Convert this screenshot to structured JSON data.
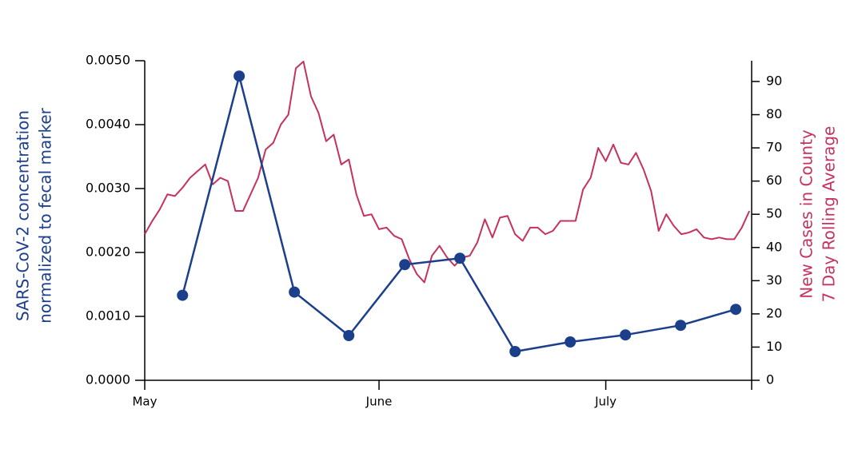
{
  "chart_data": {
    "type": "line",
    "y_label": [
      "SARS-CoV-2 concentration",
      "normalized to fecal marker"
    ],
    "y2_label": [
      "New Cases in County",
      "7 Day Rolling Average"
    ],
    "xlim": [
      0,
      80.3
    ],
    "xticks": [
      {
        "value": 0,
        "label": "May"
      },
      {
        "value": 31,
        "label": "June"
      },
      {
        "value": 61,
        "label": "July"
      }
    ],
    "ylim": [
      0,
      0.005
    ],
    "yticks": [
      {
        "value": 0,
        "label": "0.0000"
      },
      {
        "value": 0.001,
        "label": "0.0010"
      },
      {
        "value": 0.002,
        "label": "0.0020"
      },
      {
        "value": 0.003,
        "label": "0.0030"
      },
      {
        "value": 0.004,
        "label": "0.0040"
      },
      {
        "value": 0.005,
        "label": "0.0050"
      }
    ],
    "y2lim": [
      0,
      96.25
    ],
    "y2ticks": [
      0,
      10,
      20,
      30,
      40,
      50,
      60,
      70,
      80,
      90
    ],
    "series": [
      {
        "color": "#1c3f8c",
        "axis": "y",
        "markers": true,
        "x": [
          5,
          12.5,
          19.8,
          27,
          34.4,
          41.7,
          49,
          56.3,
          63.6,
          70.9,
          78.2
        ],
        "values": [
          0.00133,
          0.00476,
          0.00138,
          0.0007,
          0.00181,
          0.00191,
          0.00045,
          0.0006,
          0.00071,
          0.00086,
          0.00111
        ]
      },
      {
        "color": "#c4335f",
        "axis": "y2",
        "markers": false,
        "x": [
          0,
          1,
          2,
          3,
          4,
          5,
          6,
          7,
          8,
          9,
          10,
          11,
          12,
          13,
          14,
          15,
          16,
          17,
          18,
          19,
          20,
          21,
          22,
          23,
          24,
          25,
          26,
          27,
          28,
          29,
          30,
          31,
          32,
          33,
          34,
          35,
          36,
          37,
          38,
          39,
          40,
          41,
          42,
          43,
          44,
          45,
          46,
          47,
          48,
          49,
          50,
          51,
          52,
          53,
          54,
          55,
          56,
          57,
          58,
          59,
          60,
          61,
          62,
          63,
          64,
          65,
          66,
          67,
          68,
          69,
          70,
          71,
          72,
          73,
          74,
          75,
          76,
          77,
          78,
          79,
          80
        ],
        "values": [
          44,
          48,
          51.5,
          56,
          55.5,
          58,
          61,
          63,
          65,
          59,
          61,
          60,
          51,
          51,
          56,
          61,
          69.5,
          71.5,
          77,
          80,
          94,
          96,
          85.5,
          80.5,
          72,
          74,
          65,
          66.5,
          56,
          49.5,
          50,
          45.5,
          46,
          43.5,
          42.5,
          36.5,
          32,
          29.5,
          37.5,
          40.5,
          37,
          34.5,
          37,
          37.5,
          41.5,
          48.5,
          43,
          49,
          49.5,
          44,
          42,
          46,
          46,
          44,
          45,
          48,
          48,
          48,
          57.5,
          61,
          70,
          66,
          71,
          65.5,
          65,
          68.5,
          63.5,
          57,
          45,
          50,
          46.5,
          44,
          44.5,
          45.5,
          43,
          42.5,
          43,
          42.5,
          42.5,
          46,
          51
        ]
      }
    ]
  }
}
